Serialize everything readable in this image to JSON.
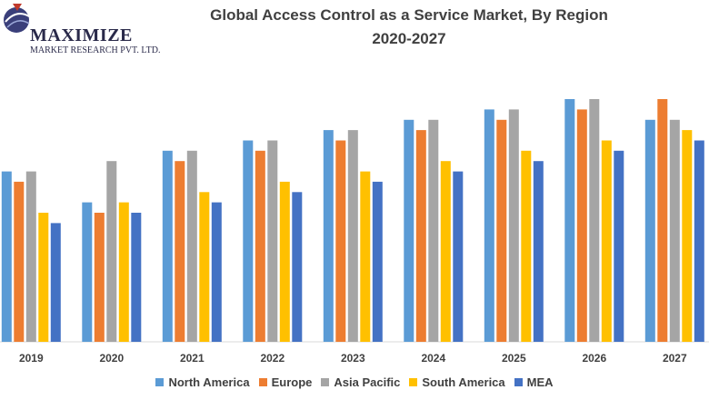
{
  "logo": {
    "name": "MAXIMIZE",
    "tagline": "MARKET RESEARCH PVT. LTD."
  },
  "chart_data": {
    "type": "bar",
    "title": "Global Access Control as a Service Market, By Region",
    "subtitle": "2020-2027",
    "xlabel": "",
    "ylabel": "",
    "ylim": [
      0,
      25
    ],
    "grid": false,
    "legend_position": "bottom",
    "categories": [
      "2019",
      "2020",
      "2021",
      "2022",
      "2023",
      "2024",
      "2025",
      "2026",
      "2027"
    ],
    "series": [
      {
        "name": "North America",
        "color": "#5b9bd5",
        "values": [
          16.5,
          13.5,
          18.5,
          19.5,
          20.5,
          21.5,
          22.5,
          23.5,
          21.5
        ]
      },
      {
        "name": "Europe",
        "color": "#ed7d31",
        "values": [
          15.5,
          12.5,
          17.5,
          18.5,
          19.5,
          20.5,
          21.5,
          22.5,
          23.5
        ]
      },
      {
        "name": "Asia Pacific",
        "color": "#a5a5a5",
        "values": [
          16.5,
          17.5,
          18.5,
          19.5,
          20.5,
          21.5,
          22.5,
          23.5,
          21.5
        ]
      },
      {
        "name": "South America",
        "color": "#ffc000",
        "values": [
          12.5,
          13.5,
          14.5,
          15.5,
          16.5,
          17.5,
          18.5,
          19.5,
          20.5
        ]
      },
      {
        "name": "MEA",
        "color": "#4472c4",
        "values": [
          11.5,
          12.5,
          13.5,
          14.5,
          15.5,
          16.5,
          17.5,
          18.5,
          19.5
        ]
      }
    ]
  }
}
